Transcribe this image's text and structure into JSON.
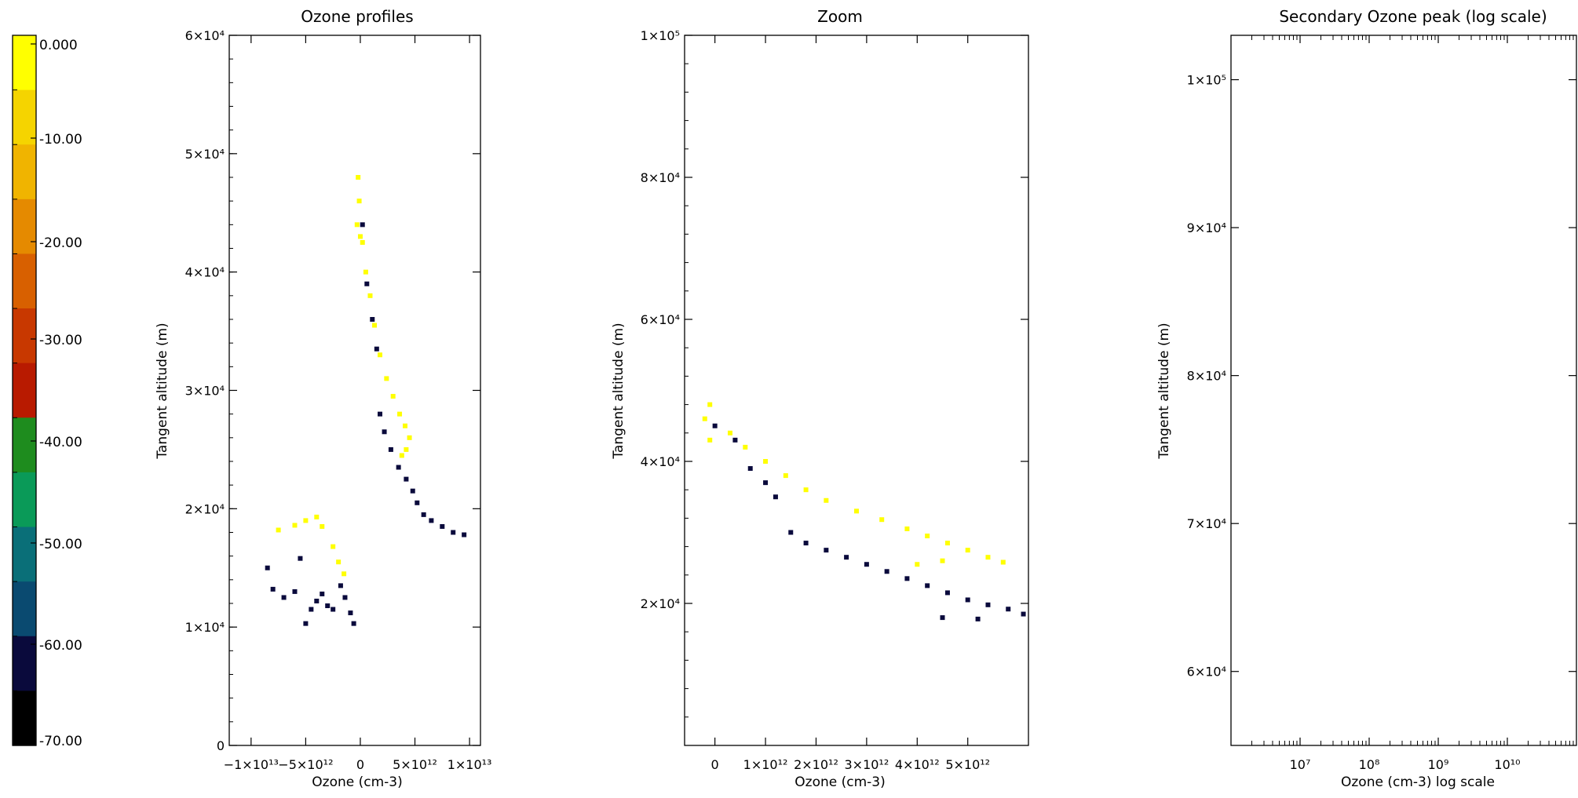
{
  "colorbar": {
    "tick_labels": [
      "0.000",
      "-10.00",
      "-20.00",
      "-30.00",
      "-40.00",
      "-50.00",
      "-60.00",
      "-70.00"
    ],
    "range": [
      -70,
      0
    ],
    "bands": [
      "#ffff00",
      "#f5d400",
      "#f0b400",
      "#e58a00",
      "#d86000",
      "#c83800",
      "#b81a00",
      "#1e8c1e",
      "#0a9a58",
      "#0a6f78",
      "#0a4a70",
      "#0a0a3c",
      "#000000"
    ]
  },
  "chart_data": [
    {
      "type": "scatter",
      "title": "Ozone profiles",
      "xlabel": "Ozone (cm-3)",
      "ylabel": "Tangent altitude (m)",
      "xlim": [
        -12000000000000.0,
        11000000000000.0
      ],
      "ylim": [
        0,
        60000
      ],
      "x_tick_labels": [
        "−1×10¹³",
        "−5×10¹²",
        "0",
        "5×10¹²",
        "1×10¹³"
      ],
      "x_ticks": [
        -10000000000000.0,
        -5000000000000.0,
        0,
        5000000000000.0,
        10000000000000.0
      ],
      "y_tick_labels": [
        "0",
        "1×10⁴",
        "2×10⁴",
        "3×10⁴",
        "4×10⁴",
        "5×10⁴",
        "6×10⁴"
      ],
      "y_ticks": [
        0,
        10000,
        20000,
        30000,
        40000,
        50000,
        60000
      ],
      "series": [
        {
          "color": "#ffff00",
          "values": [
            [
              -200000000000.0,
              48000
            ],
            [
              -100000000000.0,
              46000
            ],
            [
              -300000000000.0,
              44000
            ],
            [
              0,
              43000
            ],
            [
              200000000000.0,
              42500
            ],
            [
              500000000000.0,
              40000
            ],
            [
              900000000000.0,
              38000
            ],
            [
              1300000000000.0,
              35500
            ],
            [
              1800000000000.0,
              33000
            ],
            [
              2400000000000.0,
              31000
            ],
            [
              3000000000000.0,
              29500
            ],
            [
              3600000000000.0,
              28000
            ],
            [
              4100000000000.0,
              27000
            ],
            [
              4500000000000.0,
              26000
            ],
            [
              4200000000000.0,
              25000
            ],
            [
              3800000000000.0,
              24500
            ],
            [
              -7500000000000.0,
              18200
            ],
            [
              -6000000000000.0,
              18600
            ],
            [
              -5000000000000.0,
              19000
            ],
            [
              -4000000000000.0,
              19300
            ],
            [
              -3500000000000.0,
              18500
            ],
            [
              -2000000000000.0,
              15500
            ],
            [
              -1500000000000.0,
              14500
            ],
            [
              -2500000000000.0,
              16800
            ]
          ]
        },
        {
          "color": "#0a0a3c",
          "values": [
            [
              200000000000.0,
              44000
            ],
            [
              600000000000.0,
              39000
            ],
            [
              1100000000000.0,
              36000
            ],
            [
              1500000000000.0,
              33500
            ],
            [
              1800000000000.0,
              28000
            ],
            [
              2200000000000.0,
              26500
            ],
            [
              2800000000000.0,
              25000
            ],
            [
              3500000000000.0,
              23500
            ],
            [
              4200000000000.0,
              22500
            ],
            [
              4800000000000.0,
              21500
            ],
            [
              5200000000000.0,
              20500
            ],
            [
              5800000000000.0,
              19500
            ],
            [
              6500000000000.0,
              19000
            ],
            [
              7500000000000.0,
              18500
            ],
            [
              8500000000000.0,
              18000
            ],
            [
              9500000000000.0,
              17800
            ],
            [
              -8500000000000.0,
              15000
            ],
            [
              -8000000000000.0,
              13200
            ],
            [
              -7000000000000.0,
              12500
            ],
            [
              -6000000000000.0,
              13000
            ],
            [
              -5500000000000.0,
              15800
            ],
            [
              -5000000000000.0,
              10300
            ],
            [
              -4500000000000.0,
              11500
            ],
            [
              -4000000000000.0,
              12200
            ],
            [
              -3500000000000.0,
              12800
            ],
            [
              -3000000000000.0,
              11800
            ],
            [
              -2500000000000.0,
              11500
            ],
            [
              -1800000000000.0,
              13500
            ],
            [
              -1400000000000.0,
              12500
            ],
            [
              -900000000000.0,
              11200
            ],
            [
              -600000000000.0,
              10300
            ]
          ]
        }
      ]
    },
    {
      "type": "scatter",
      "title": "Zoom",
      "xlabel": "Ozone (cm-3)",
      "ylabel": "Tangent altitude (m)",
      "xlim": [
        -600000000000.0,
        6200000000000.0
      ],
      "ylim": [
        0,
        100000
      ],
      "x_tick_labels": [
        "0",
        "1×10¹²",
        "2×10¹²",
        "3×10¹²",
        "4×10¹²",
        "5×10¹²"
      ],
      "x_ticks": [
        0,
        1000000000000.0,
        2000000000000.0,
        3000000000000.0,
        4000000000000.0,
        5000000000000.0
      ],
      "y_tick_labels": [
        "2×10⁴",
        "4×10⁴",
        "6×10⁴",
        "8×10⁴",
        "1×10⁵"
      ],
      "y_ticks": [
        20000,
        40000,
        60000,
        80000,
        100000
      ],
      "series": [
        {
          "color": "#ffff00",
          "values": [
            [
              -100000000000.0,
              48000
            ],
            [
              -200000000000.0,
              46000
            ],
            [
              -100000000000.0,
              43000
            ],
            [
              300000000000.0,
              44000
            ],
            [
              600000000000.0,
              42000
            ],
            [
              1000000000000.0,
              40000
            ],
            [
              1400000000000.0,
              38000
            ],
            [
              1800000000000.0,
              36000
            ],
            [
              2200000000000.0,
              34500
            ],
            [
              2800000000000.0,
              33000
            ],
            [
              3300000000000.0,
              31800
            ],
            [
              3800000000000.0,
              30500
            ],
            [
              4200000000000.0,
              29500
            ],
            [
              4600000000000.0,
              28500
            ],
            [
              5000000000000.0,
              27500
            ],
            [
              5400000000000.0,
              26500
            ],
            [
              5700000000000.0,
              25800
            ],
            [
              4500000000000.0,
              26000
            ],
            [
              4000000000000.0,
              25500
            ]
          ]
        },
        {
          "color": "#0a0a3c",
          "values": [
            [
              0.0,
              45000
            ],
            [
              400000000000.0,
              43000
            ],
            [
              700000000000.0,
              39000
            ],
            [
              1000000000000.0,
              37000
            ],
            [
              1200000000000.0,
              35000
            ],
            [
              1500000000000.0,
              30000
            ],
            [
              1800000000000.0,
              28500
            ],
            [
              2200000000000.0,
              27500
            ],
            [
              2600000000000.0,
              26500
            ],
            [
              3000000000000.0,
              25500
            ],
            [
              3400000000000.0,
              24500
            ],
            [
              3800000000000.0,
              23500
            ],
            [
              4200000000000.0,
              22500
            ],
            [
              4600000000000.0,
              21500
            ],
            [
              5000000000000.0,
              20500
            ],
            [
              5400000000000.0,
              19800
            ],
            [
              5800000000000.0,
              19200
            ],
            [
              6100000000000.0,
              18500
            ],
            [
              4500000000000.0,
              18000
            ],
            [
              5200000000000.0,
              17800
            ]
          ]
        }
      ]
    },
    {
      "type": "scatter",
      "title": "Secondary Ozone peak (log scale)",
      "xlabel": "Ozone (cm-3) log scale",
      "ylabel": "Tangent altitude (m)",
      "x_scale": "log",
      "xlim": [
        1000000.0,
        100000000000.0
      ],
      "ylim": [
        55000,
        103000
      ],
      "x_tick_labels": [
        "10⁷",
        "10⁸",
        "10⁹",
        "10¹⁰"
      ],
      "x_ticks": [
        10000000.0,
        100000000.0,
        1000000000.0,
        10000000000.0
      ],
      "y_tick_labels": [
        "6×10⁴",
        "7×10⁴",
        "8×10⁴",
        "9×10⁴",
        "1×10⁵"
      ],
      "y_ticks": [
        60000,
        70000,
        80000,
        90000,
        100000
      ],
      "series": []
    }
  ]
}
